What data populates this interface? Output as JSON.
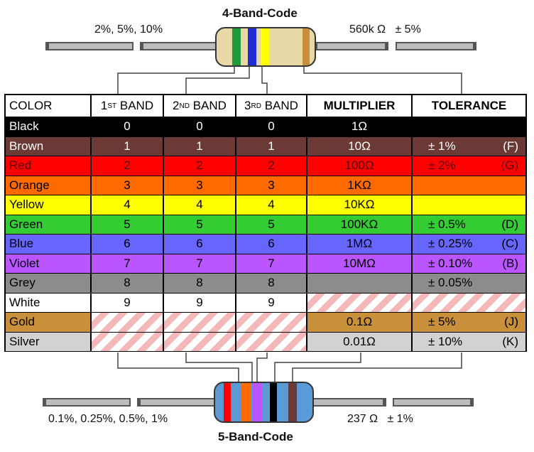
{
  "top": {
    "title": "4-Band-Code",
    "left_label": "2%, 5%, 10%",
    "right_label": "560k Ω   ± 5%"
  },
  "bottom": {
    "title": "5-Band-Code",
    "left_label": "0.1%, 0.25%, 0.5%, 1%",
    "right_label": "237 Ω   ± 1%"
  },
  "table": {
    "headers": {
      "color": "COLOR",
      "band1_num": "1",
      "band1_sup": "ST",
      "band1_word": " BAND",
      "band2_num": "2",
      "band2_sup": "ND",
      "band2_word": " BAND",
      "band3_num": "3",
      "band3_sup": "RD",
      "band3_word": " BAND",
      "multiplier": "MULTIPLIER",
      "tolerance": "TOLERANCE"
    },
    "rows": [
      {
        "name": "Black",
        "b1": "0",
        "b2": "0",
        "b3": "0",
        "mult": "1Ω",
        "tol": "",
        "code": "",
        "bg": "#000000",
        "fg": "#ffffff"
      },
      {
        "name": "Brown",
        "b1": "1",
        "b2": "1",
        "b3": "1",
        "mult": "10Ω",
        "tol": "± 1%",
        "code": "(F)",
        "bg": "#6b3a36",
        "fg": "#ffffff"
      },
      {
        "name": "Red",
        "b1": "2",
        "b2": "2",
        "b3": "2",
        "mult": "100Ω",
        "tol": "± 2%",
        "code": "(G)",
        "bg": "#ff0000",
        "fg": "#5a0000"
      },
      {
        "name": "Orange",
        "b1": "3",
        "b2": "3",
        "b3": "3",
        "mult": "1KΩ",
        "tol": "",
        "code": "",
        "bg": "#ff6a00",
        "fg": "#000000"
      },
      {
        "name": "Yellow",
        "b1": "4",
        "b2": "4",
        "b3": "4",
        "mult": "10KΩ",
        "tol": "",
        "code": "",
        "bg": "#ffff00",
        "fg": "#000000"
      },
      {
        "name": "Green",
        "b1": "5",
        "b2": "5",
        "b3": "5",
        "mult": "100KΩ",
        "tol": "± 0.5%",
        "code": "(D)",
        "bg": "#33cc33",
        "fg": "#000000"
      },
      {
        "name": "Blue",
        "b1": "6",
        "b2": "6",
        "b3": "6",
        "mult": "1MΩ",
        "tol": "± 0.25%",
        "code": "(C)",
        "bg": "#6666ff",
        "fg": "#000000"
      },
      {
        "name": "Violet",
        "b1": "7",
        "b2": "7",
        "b3": "7",
        "mult": "10MΩ",
        "tol": "± 0.10%",
        "code": "(B)",
        "bg": "#bb55ff",
        "fg": "#000000"
      },
      {
        "name": "Grey",
        "b1": "8",
        "b2": "8",
        "b3": "8",
        "mult": "",
        "tol": "± 0.05%",
        "code": "",
        "bg": "#8c8c8c",
        "fg": "#000000"
      },
      {
        "name": "White",
        "b1": "9",
        "b2": "9",
        "b3": "9",
        "mult": "",
        "tol": "",
        "code": "",
        "bg": "#ffffff",
        "fg": "#000000"
      },
      {
        "name": "Gold",
        "b1": "",
        "b2": "",
        "b3": "",
        "mult": "0.1Ω",
        "tol": "± 5%",
        "code": "(J)",
        "bg": "#c8903a",
        "fg": "#000000"
      },
      {
        "name": "Silver",
        "b1": "",
        "b2": "",
        "b3": "",
        "mult": "0.01Ω",
        "tol": "± 10%",
        "code": "(K)",
        "bg": "#d2d2d2",
        "fg": "#000000"
      }
    ]
  },
  "colors": {
    "resistor_body_top": "#e8d8a8",
    "resistor_body_bottom": "#5b9bd5",
    "top_bands": [
      "#1e9b3c",
      "#1e2bd6",
      "#ffff00",
      "#c8903a"
    ],
    "bottom_bands": [
      "#ff0000",
      "#ff6a00",
      "#bb55ff",
      "#000000",
      "#6b3a36"
    ]
  }
}
